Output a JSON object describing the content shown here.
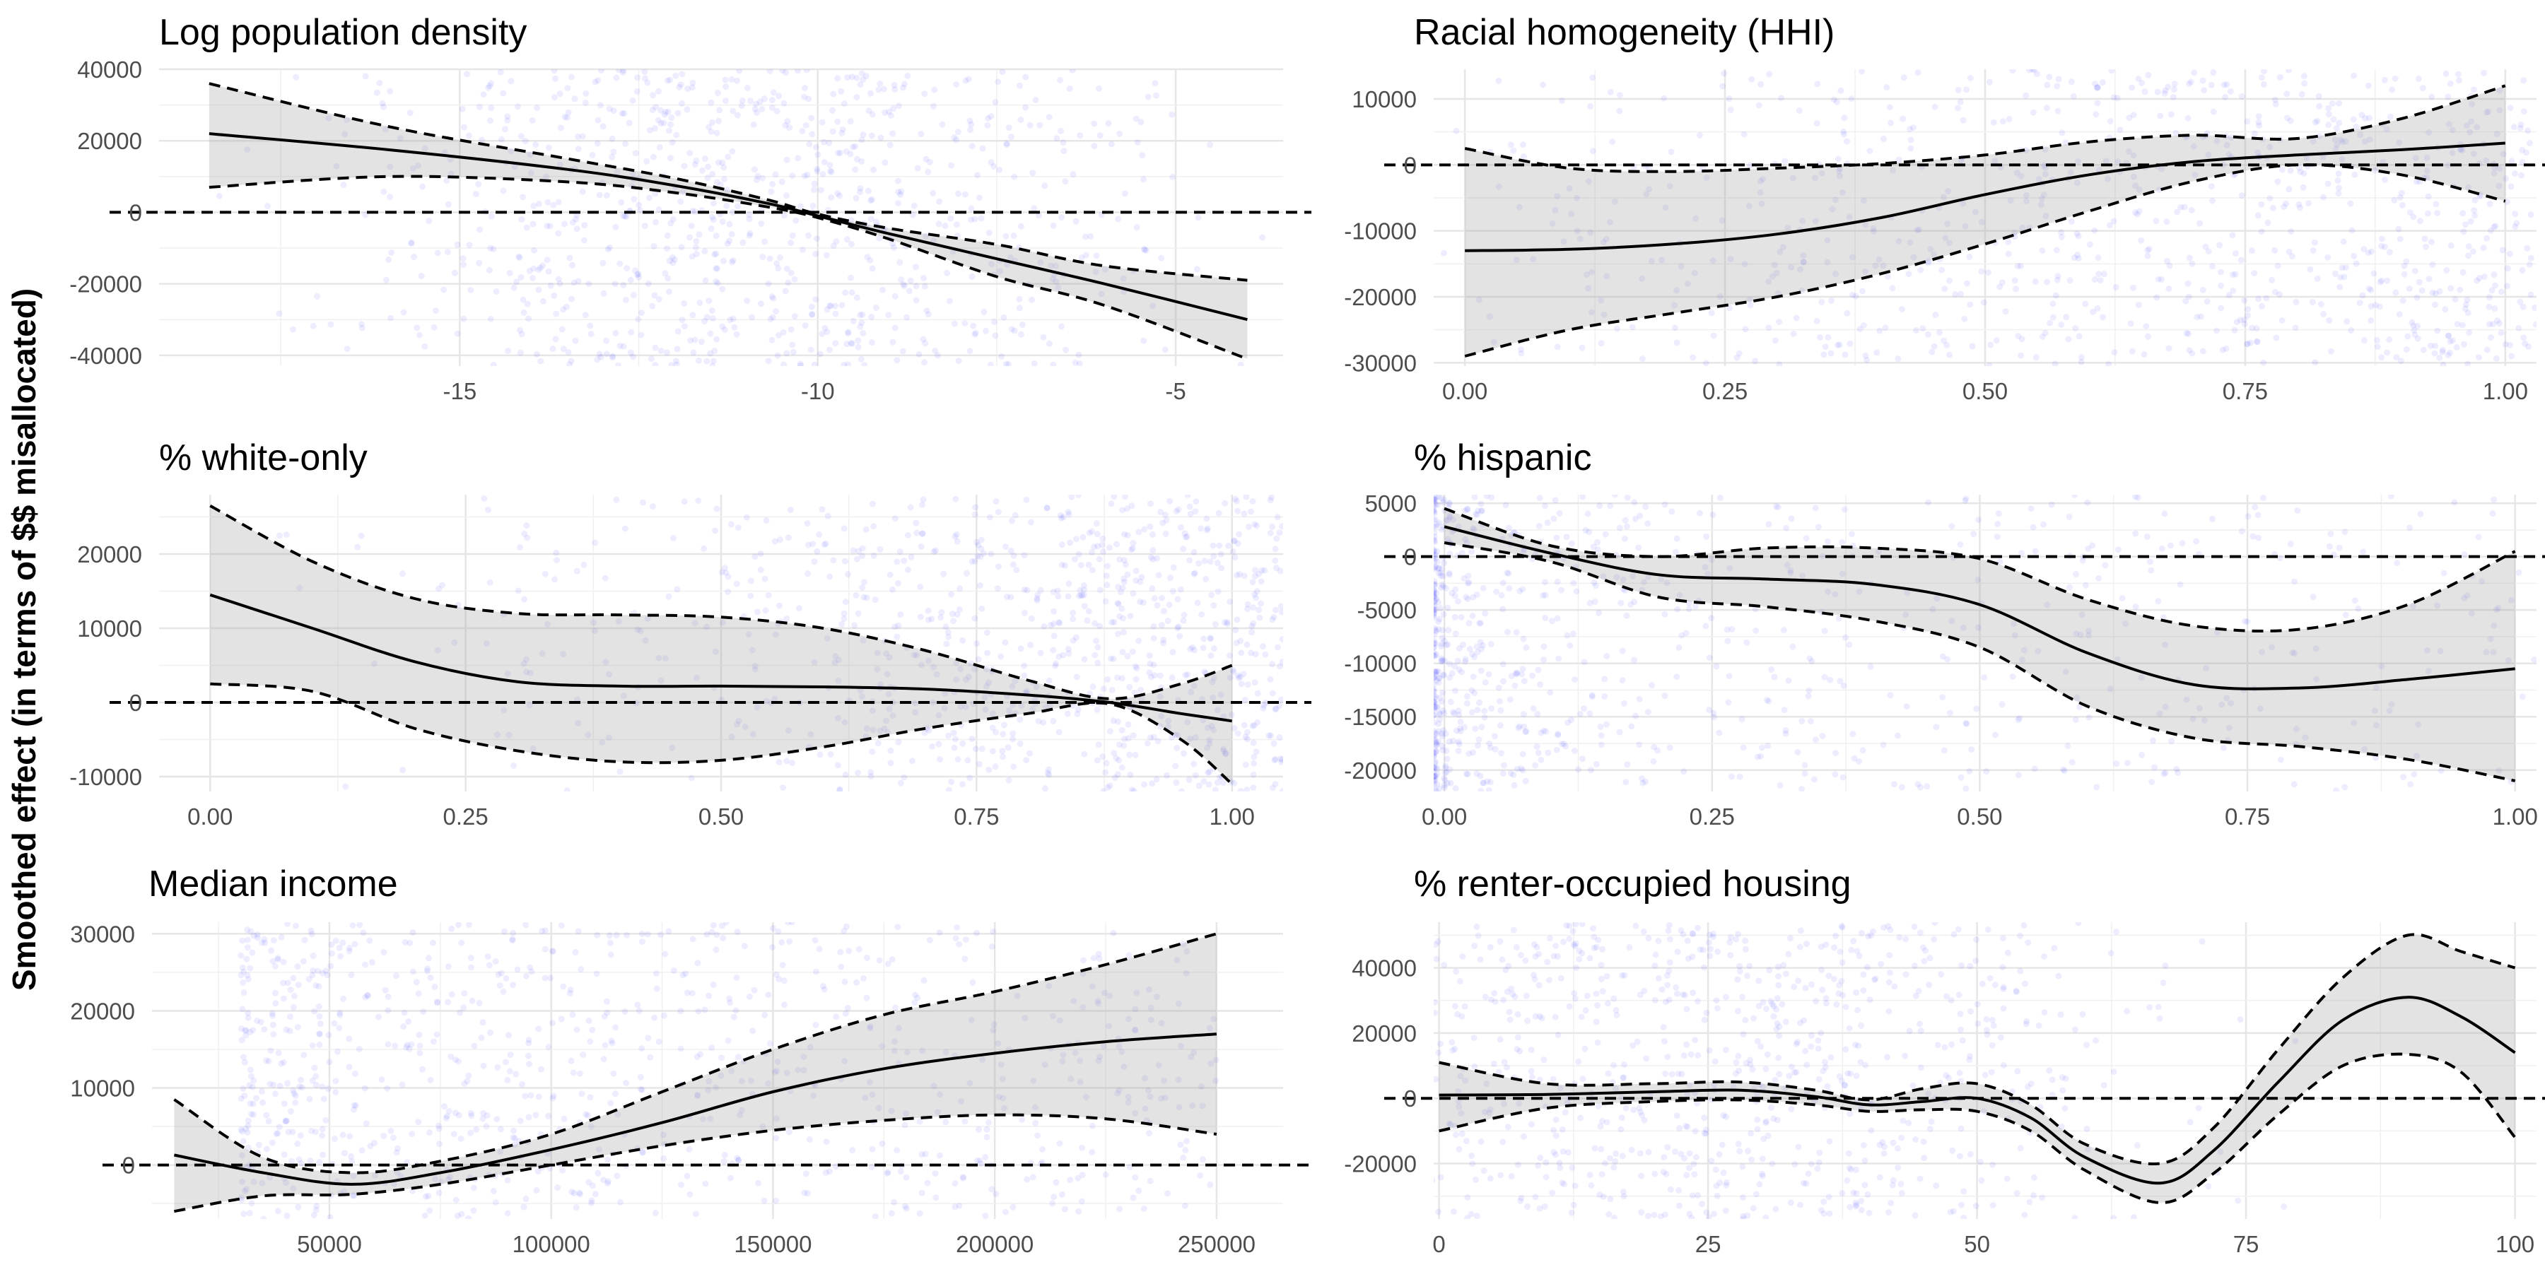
{
  "figure": {
    "ylabel": "Smoothed effect (in terms of $$ misallocated)"
  },
  "chart_data": [
    {
      "type": "line",
      "title": "Log population density",
      "xlim": [
        -19.2,
        -3.5
      ],
      "ylim": [
        -43000,
        40000
      ],
      "xticks": [
        -15,
        -10,
        -5
      ],
      "xtick_labels": [
        "-15",
        "-10",
        "-5"
      ],
      "yticks": [
        -40000,
        -20000,
        0,
        20000,
        40000
      ],
      "ytick_labels": [
        "-40000",
        "-20000",
        "0",
        "20000",
        "40000"
      ],
      "x": [
        -18.5,
        -16,
        -13.5,
        -12,
        -10.7,
        -10,
        -9,
        -7.5,
        -6,
        -4
      ],
      "estimate": [
        22000,
        17500,
        12000,
        7500,
        2500,
        -1000,
        -6000,
        -13000,
        -20000,
        -30000
      ],
      "lower": [
        7000,
        10000,
        8500,
        5500,
        1500,
        -1500,
        -7500,
        -18000,
        -26000,
        -41000
      ],
      "upper": [
        36000,
        24000,
        15000,
        9500,
        3500,
        -500,
        -4500,
        -9000,
        -15000,
        -19000
      ],
      "reference_line": 0,
      "scatter_points": "jittered raw observations (blue, transparent)"
    },
    {
      "type": "line",
      "title": "Racial homogeneity (HHI)",
      "xlim": [
        -0.03,
        1.03
      ],
      "ylim": [
        -30500,
        14500
      ],
      "xticks": [
        0,
        0.25,
        0.5,
        0.75,
        1
      ],
      "xtick_labels": [
        "0.00",
        "0.25",
        "0.50",
        "0.75",
        "1.00"
      ],
      "yticks": [
        -30000,
        -20000,
        -10000,
        0,
        10000
      ],
      "ytick_labels": [
        "-30000",
        "-20000",
        "-10000",
        "0",
        "10000"
      ],
      "x": [
        0,
        0.1,
        0.2,
        0.3,
        0.4,
        0.5,
        0.6,
        0.7,
        0.8,
        0.9,
        1
      ],
      "estimate": [
        -13000,
        -12800,
        -12000,
        -10500,
        -8000,
        -4500,
        -1500,
        500,
        1500,
        2300,
        3300
      ],
      "lower": [
        -29000,
        -25000,
        -22500,
        -20000,
        -16500,
        -12000,
        -7000,
        -2500,
        0,
        -1500,
        -5500
      ],
      "upper": [
        2500,
        -500,
        -1000,
        -500,
        200,
        1500,
        3500,
        4500,
        4000,
        7000,
        12000
      ],
      "reference_line": 0,
      "scatter_points": "jittered raw observations (blue, transparent)"
    },
    {
      "type": "line",
      "title": "% white-only",
      "xlim": [
        -0.05,
        1.05
      ],
      "ylim": [
        -12000,
        28000
      ],
      "xticks": [
        0,
        0.25,
        0.5,
        0.75,
        1
      ],
      "xtick_labels": [
        "0.00",
        "0.25",
        "0.50",
        "0.75",
        "1.00"
      ],
      "yticks": [
        -10000,
        0,
        10000,
        20000
      ],
      "ytick_labels": [
        "-10000",
        "0",
        "10000",
        "20000"
      ],
      "x": [
        0,
        0.1,
        0.2,
        0.3,
        0.4,
        0.5,
        0.6,
        0.7,
        0.8,
        0.88,
        0.95,
        1
      ],
      "estimate": [
        14500,
        10000,
        5500,
        2800,
        2200,
        2200,
        2100,
        1800,
        1000,
        0,
        -1500,
        -2500
      ],
      "lower": [
        2500,
        1500,
        -3500,
        -6500,
        -8000,
        -7800,
        -6000,
        -3500,
        -1500,
        -200,
        -5000,
        -11000
      ],
      "upper": [
        26500,
        19000,
        14000,
        12000,
        11800,
        11500,
        10000,
        7000,
        3000,
        500,
        2500,
        5000
      ],
      "reference_line": 0,
      "scatter_points": "jittered raw observations (blue, transparent)"
    },
    {
      "type": "line",
      "title": "% hispanic",
      "xlim": [
        -0.01,
        1.02
      ],
      "ylim": [
        -22000,
        5800
      ],
      "xticks": [
        0,
        0.25,
        0.5,
        0.75,
        1
      ],
      "xtick_labels": [
        "0.00",
        "0.25",
        "0.50",
        "0.75",
        "1.00"
      ],
      "yticks": [
        -20000,
        -15000,
        -10000,
        -5000,
        0,
        5000
      ],
      "ytick_labels": [
        "-20000",
        "-15000",
        "-10000",
        "-5000",
        "0",
        "5000"
      ],
      "x": [
        0,
        0.1,
        0.2,
        0.3,
        0.4,
        0.5,
        0.6,
        0.7,
        0.8,
        0.9,
        1
      ],
      "estimate": [
        2800,
        300,
        -1700,
        -2100,
        -2600,
        -4500,
        -9000,
        -12000,
        -12300,
        -11500,
        -10500
      ],
      "lower": [
        1300,
        -500,
        -3800,
        -4700,
        -6000,
        -8500,
        -14000,
        -17000,
        -17800,
        -19000,
        -21000
      ],
      "upper": [
        4500,
        1000,
        0,
        800,
        800,
        -200,
        -4000,
        -6500,
        -6800,
        -4500,
        500
      ],
      "reference_line": 0,
      "scatter_points": "jittered raw observations (blue, transparent)"
    },
    {
      "type": "line",
      "title": "Median income",
      "xlim": [
        10000,
        265000
      ],
      "ylim": [
        -7000,
        31500
      ],
      "xticks": [
        50000,
        100000,
        150000,
        200000,
        250000
      ],
      "xtick_labels": [
        "50000",
        "100000",
        "150000",
        "200000",
        "250000"
      ],
      "yticks": [
        0,
        10000,
        20000,
        30000
      ],
      "ytick_labels": [
        "0",
        "10000",
        "20000",
        "30000"
      ],
      "x": [
        15000,
        35000,
        55000,
        75000,
        100000,
        125000,
        150000,
        175000,
        200000,
        225000,
        250000
      ],
      "estimate": [
        1300,
        -1000,
        -2500,
        -1000,
        2000,
        5500,
        9500,
        12500,
        14500,
        16000,
        17000
      ],
      "lower": [
        -6000,
        -4000,
        -3800,
        -2500,
        0,
        2500,
        4500,
        5800,
        6500,
        6000,
        4000
      ],
      "upper": [
        8500,
        1000,
        -1000,
        500,
        4000,
        9500,
        15000,
        19500,
        22500,
        26000,
        30000
      ],
      "reference_line": 0,
      "scatter_points": "jittered raw observations (blue, transparent)"
    },
    {
      "type": "line",
      "title": "% renter-occupied housing",
      "xlim": [
        -0.5,
        102
      ],
      "ylim": [
        -37000,
        54000
      ],
      "xticks": [
        0,
        25,
        50,
        75,
        100
      ],
      "xtick_labels": [
        "0",
        "25",
        "50",
        "75",
        "100"
      ],
      "yticks": [
        -20000,
        0,
        20000,
        40000
      ],
      "ytick_labels": [
        "-20000",
        "0",
        "20000",
        "40000"
      ],
      "x": [
        0,
        10,
        20,
        28,
        35,
        40,
        45,
        50,
        55,
        60,
        67,
        72,
        78,
        84,
        90,
        95,
        100
      ],
      "estimate": [
        1000,
        1200,
        2000,
        2500,
        500,
        -2000,
        -1000,
        0,
        -6000,
        -18000,
        -26000,
        -16000,
        5000,
        24000,
        31000,
        25000,
        14000
      ],
      "lower": [
        -10000,
        -3000,
        -1000,
        -500,
        -2000,
        -4000,
        -3500,
        -4000,
        -10000,
        -22000,
        -32000,
        -23000,
        -5000,
        10000,
        13500,
        8000,
        -12000
      ],
      "upper": [
        11000,
        4500,
        4500,
        5000,
        2500,
        -500,
        3000,
        4500,
        -2000,
        -14000,
        -20000,
        -9000,
        15000,
        37000,
        50000,
        45000,
        40000
      ],
      "reference_line": 0,
      "scatter_points": "jittered raw observations (blue, transparent)"
    }
  ]
}
